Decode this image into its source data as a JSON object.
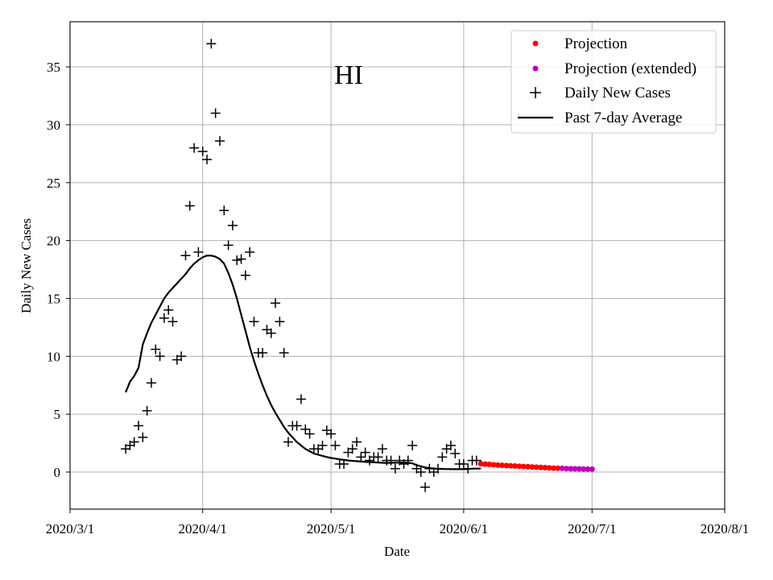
{
  "chart_data": {
    "type": "scatter",
    "title": "HI",
    "xlabel": "Date",
    "ylabel": "Daily New Cases",
    "x_origin": "2020-03-01",
    "xlim": [
      0,
      153
    ],
    "ylim": [
      -3.2,
      38.9
    ],
    "x_ticks": [
      {
        "day": 0,
        "label": "2020/3/1"
      },
      {
        "day": 31,
        "label": "2020/4/1"
      },
      {
        "day": 61,
        "label": "2020/5/1"
      },
      {
        "day": 92,
        "label": "2020/6/1"
      },
      {
        "day": 122,
        "label": "2020/7/1"
      },
      {
        "day": 153,
        "label": "2020/8/1"
      }
    ],
    "y_ticks": [
      0,
      5,
      10,
      15,
      20,
      25,
      30,
      35
    ],
    "grid": true,
    "legend_position": "top-right",
    "legend": [
      "Projection",
      "Projection (extended)",
      "Daily New Cases",
      "Past 7-day Average"
    ],
    "colors": {
      "projection": "#ff0000",
      "projection_extended": "#bf00bf",
      "daily": "#000000",
      "average": "#000000",
      "grid": "#b0b0b0"
    },
    "series": [
      {
        "name": "Daily New Cases",
        "kind": "plus",
        "x": [
          13,
          14,
          15,
          16,
          17,
          18,
          19,
          20,
          21,
          22,
          23,
          24,
          25,
          26,
          27,
          28,
          29,
          30,
          31,
          32,
          33,
          34,
          35,
          36,
          37,
          38,
          39,
          40,
          41,
          42,
          43,
          44,
          45,
          46,
          47,
          48,
          49,
          50,
          51,
          52,
          53,
          54,
          55,
          56,
          57,
          58,
          59,
          60,
          61,
          62,
          63,
          64,
          65,
          66,
          67,
          68,
          69,
          70,
          71,
          72,
          73,
          74,
          75,
          76,
          77,
          78,
          79,
          80,
          81,
          82,
          83,
          84,
          85,
          86,
          87,
          88,
          89,
          90,
          91,
          92,
          93,
          94,
          95
        ],
        "y": [
          2,
          2.3,
          2.6,
          4,
          3,
          5.3,
          7.7,
          10.6,
          10,
          13.3,
          14,
          13,
          9.7,
          10,
          18.7,
          23,
          28,
          19,
          27.7,
          27,
          37,
          31,
          28.6,
          22.6,
          19.6,
          21.3,
          18.3,
          18.4,
          17,
          19,
          13,
          10.3,
          10.3,
          12.3,
          12,
          14.6,
          13,
          10.3,
          2.6,
          4,
          4,
          6.3,
          3.7,
          3.3,
          2,
          2,
          2.3,
          3.6,
          3.3,
          2.3,
          0.7,
          0.7,
          1.7,
          2,
          2.6,
          1.3,
          1.7,
          1,
          1.3,
          1.3,
          2,
          1,
          1,
          0.3,
          1,
          0.7,
          1,
          2.3,
          0.3,
          0,
          -1.3,
          0.3,
          0,
          0.3,
          1.3,
          2,
          2.3,
          1.6,
          0.7,
          0.7,
          0.3,
          1,
          1
        ]
      },
      {
        "name": "Past 7-day Average",
        "kind": "line",
        "x": [
          13,
          14,
          15,
          16,
          17,
          18,
          19,
          20,
          21,
          22,
          23,
          24,
          25,
          26,
          27,
          28,
          29,
          30,
          31,
          32,
          33,
          34,
          35,
          36,
          37,
          38,
          39,
          40,
          41,
          42,
          43,
          44,
          45,
          46,
          47,
          48,
          49,
          50,
          51,
          52,
          53,
          54,
          55,
          56,
          57,
          58,
          59,
          60,
          61,
          62,
          63,
          64,
          65,
          66,
          67,
          68,
          69,
          70,
          71,
          72,
          73,
          74,
          75,
          76,
          77,
          78,
          79,
          80,
          81,
          82,
          83,
          84,
          85,
          86,
          87,
          88,
          89,
          90,
          91,
          92,
          93,
          94,
          95,
          96
        ],
        "y": [
          6.9,
          7.8,
          8.3,
          9,
          11,
          12,
          12.9,
          13.6,
          14.3,
          15,
          15.5,
          15.9,
          16.3,
          16.7,
          17.1,
          17.6,
          18,
          18.3,
          18.55,
          18.7,
          18.7,
          18.6,
          18.4,
          18,
          17.2,
          16.2,
          15,
          13.6,
          12.2,
          10.8,
          9.6,
          8.5,
          7.5,
          6.6,
          5.8,
          5.1,
          4.5,
          3.9,
          3.4,
          3,
          2.6,
          2.3,
          2,
          1.8,
          1.6,
          1.5,
          1.4,
          1.3,
          1.22,
          1.16,
          1.1,
          1.05,
          1,
          0.97,
          0.94,
          0.91,
          0.88,
          0.86,
          0.84,
          0.82,
          0.8,
          0.79,
          0.8,
          0.81,
          0.82,
          0.81,
          0.8,
          0.75,
          0.6,
          0.5,
          0.4,
          0.35,
          0.3,
          0.28,
          0.27,
          0.26,
          0.25,
          0.25,
          0.25,
          0.25,
          0.27,
          0.29,
          0.3,
          0.3
        ]
      },
      {
        "name": "Projection",
        "kind": "dot",
        "x": [
          96,
          97,
          98,
          99,
          100,
          101,
          102,
          103,
          104,
          105,
          106,
          107,
          108,
          109,
          110,
          111,
          112,
          113,
          114
        ],
        "y": [
          0.72,
          0.69,
          0.66,
          0.63,
          0.6,
          0.58,
          0.56,
          0.54,
          0.52,
          0.5,
          0.48,
          0.46,
          0.44,
          0.42,
          0.4,
          0.38,
          0.36,
          0.34,
          0.33
        ]
      },
      {
        "name": "Projection (extended)",
        "kind": "dot",
        "x": [
          115,
          116,
          117,
          118,
          119,
          120,
          121,
          122
        ],
        "y": [
          0.32,
          0.3,
          0.29,
          0.28,
          0.27,
          0.26,
          0.25,
          0.25
        ]
      }
    ]
  }
}
